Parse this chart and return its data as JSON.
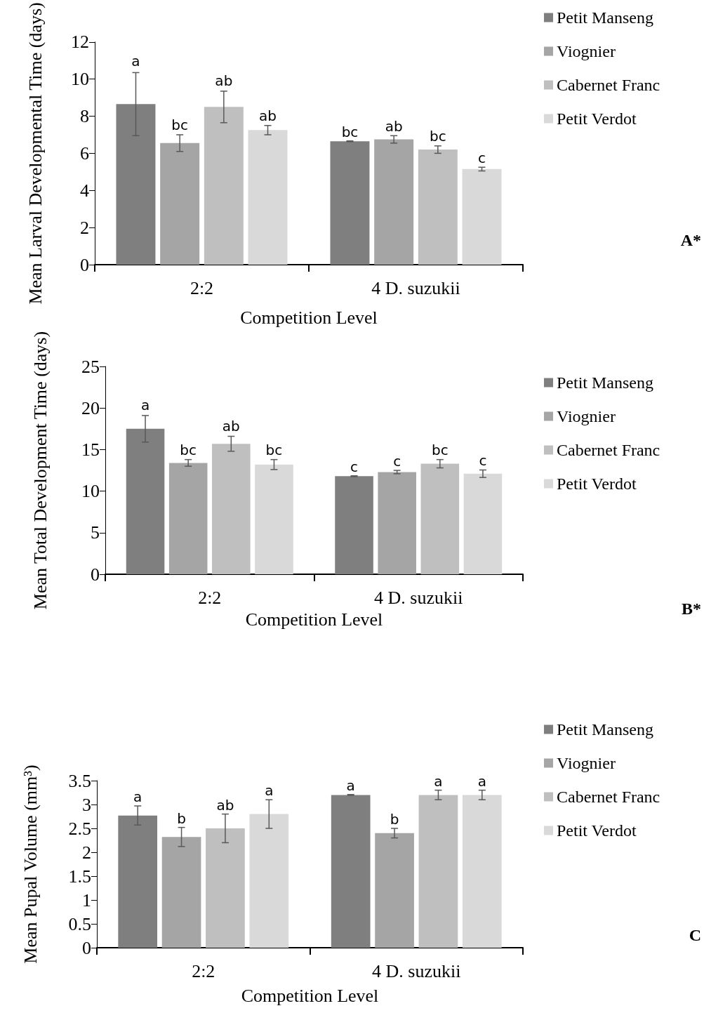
{
  "chart_data": [
    {
      "type": "bar",
      "xlabel": "Competition Level",
      "ylabel": "Mean Larval Developmental Time (days)",
      "categories": [
        "2:2",
        "4 D. suzukii"
      ],
      "ylim": [
        0,
        12
      ],
      "yticks": [
        0,
        2,
        4,
        6,
        8,
        10,
        12
      ],
      "grid": false,
      "legend": "top right",
      "annotations": [
        "A*"
      ],
      "series": [
        {
          "name": "Petit Manseng",
          "color": "#7f7f7f",
          "values": [
            8.65,
            6.65
          ],
          "errors": [
            1.7,
            0.02
          ],
          "value_labels": [
            "a",
            "bc"
          ]
        },
        {
          "name": "Viognier",
          "color": "#a5a5a5",
          "values": [
            6.55,
            6.75
          ],
          "errors": [
            0.45,
            0.2
          ],
          "value_labels": [
            "bc",
            "ab"
          ]
        },
        {
          "name": "Cabernet Franc",
          "color": "#bfbfbf",
          "values": [
            8.5,
            6.2
          ],
          "errors": [
            0.85,
            0.2
          ],
          "value_labels": [
            "ab",
            "bc"
          ]
        },
        {
          "name": "Petit Verdot",
          "color": "#d9d9d9",
          "values": [
            7.25,
            5.15
          ],
          "errors": [
            0.25,
            0.1
          ],
          "value_labels": [
            "ab",
            "c"
          ]
        }
      ]
    },
    {
      "type": "bar",
      "xlabel": "Competition Level",
      "ylabel": "Mean Total Development Time (days)",
      "categories": [
        "2:2",
        "4 D. suzukii"
      ],
      "ylim": [
        0,
        25
      ],
      "yticks": [
        0,
        5,
        10,
        15,
        20,
        25
      ],
      "grid": false,
      "legend": "top right",
      "annotations": [
        "B*"
      ],
      "series": [
        {
          "name": "Petit Manseng",
          "color": "#7f7f7f",
          "values": [
            17.5,
            11.8
          ],
          "errors": [
            1.6,
            0.05
          ],
          "value_labels": [
            "a",
            "c"
          ]
        },
        {
          "name": "Viognier",
          "color": "#a5a5a5",
          "values": [
            13.4,
            12.3
          ],
          "errors": [
            0.4,
            0.2
          ],
          "value_labels": [
            "bc",
            "c"
          ]
        },
        {
          "name": "Cabernet Franc",
          "color": "#bfbfbf",
          "values": [
            15.7,
            13.3
          ],
          "errors": [
            0.9,
            0.5
          ],
          "value_labels": [
            "ab",
            "bc"
          ]
        },
        {
          "name": "Petit Verdot",
          "color": "#d9d9d9",
          "values": [
            13.2,
            12.1
          ],
          "errors": [
            0.6,
            0.45
          ],
          "value_labels": [
            "bc",
            "c"
          ]
        }
      ]
    },
    {
      "type": "bar",
      "xlabel": "Competition Level",
      "ylabel": "Mean Pupal Volume (mm³)",
      "categories": [
        "2:2",
        "4 D. suzukii"
      ],
      "ylim": [
        0,
        3.5
      ],
      "yticks": [
        0,
        0.5,
        1,
        1.5,
        2,
        2.5,
        3,
        3.5
      ],
      "grid": false,
      "legend": "top right",
      "annotations": [
        "C"
      ],
      "series": [
        {
          "name": "Petit Manseng",
          "color": "#7f7f7f",
          "values": [
            2.77,
            3.2
          ],
          "errors": [
            0.2,
            0.01
          ],
          "value_labels": [
            "a",
            "a"
          ]
        },
        {
          "name": "Viognier",
          "color": "#a5a5a5",
          "values": [
            2.32,
            2.4
          ],
          "errors": [
            0.2,
            0.1
          ],
          "value_labels": [
            "b",
            "b"
          ]
        },
        {
          "name": "Cabernet Franc",
          "color": "#bfbfbf",
          "values": [
            2.5,
            3.2
          ],
          "errors": [
            0.3,
            0.1
          ],
          "value_labels": [
            "ab",
            "a"
          ]
        },
        {
          "name": "Petit Verdot",
          "color": "#d9d9d9",
          "values": [
            2.8,
            3.2
          ],
          "errors": [
            0.3,
            0.1
          ],
          "value_labels": [
            "a",
            "a"
          ]
        }
      ]
    }
  ]
}
